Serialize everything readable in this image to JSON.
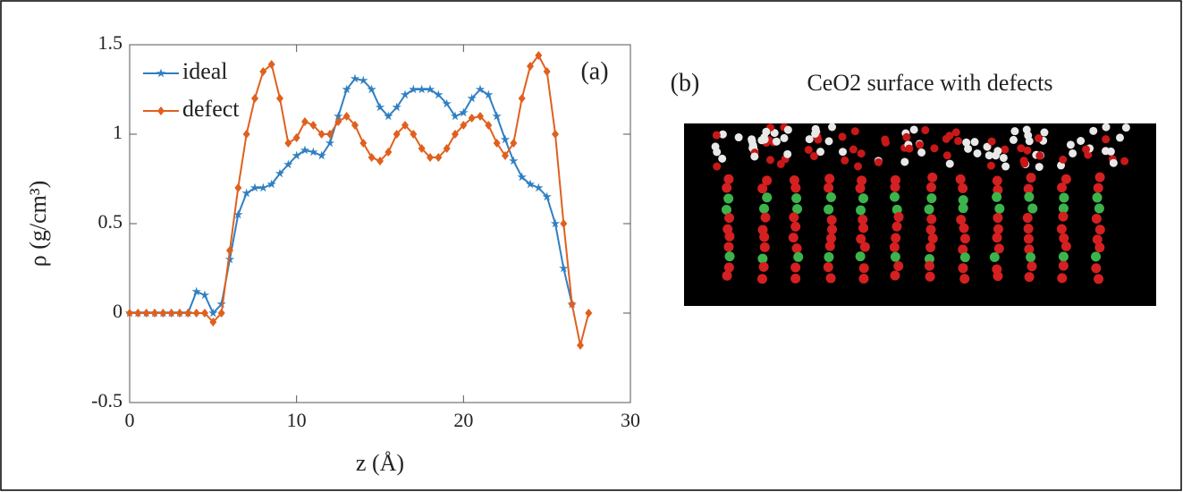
{
  "chart_data": {
    "type": "line",
    "xlabel": "z (Å)",
    "ylabel": "ρ (g/cm³)",
    "xlim": [
      0,
      30
    ],
    "xticks": [
      0,
      10,
      20,
      30
    ],
    "ylim": [
      -0.5,
      1.5
    ],
    "yticks": [
      -0.5,
      0,
      0.5,
      1,
      1.5
    ],
    "legend": "upper left",
    "annotations": [
      "(a)",
      "(b)"
    ],
    "image_title": "CeO2 surface with defects",
    "x": [
      0,
      0.5,
      1,
      1.5,
      2,
      2.5,
      3,
      3.5,
      4,
      4.5,
      5,
      5.5,
      6,
      6.5,
      7,
      7.5,
      8,
      8.5,
      9,
      9.5,
      10,
      10.5,
      11,
      11.5,
      12,
      12.5,
      13,
      13.5,
      14,
      14.5,
      15,
      15.5,
      16,
      16.5,
      17,
      17.5,
      18,
      18.5,
      19,
      19.5,
      20,
      20.5,
      21,
      21.5,
      22,
      22.5,
      23,
      23.5,
      24,
      24.5,
      25,
      25.5,
      26,
      26.5,
      27,
      27.5
    ],
    "series": [
      {
        "name": "ideal",
        "color": "#2f7fc1",
        "marker": "star",
        "values": [
          0,
          0,
          0,
          0,
          0,
          0,
          0,
          0,
          0.12,
          0.1,
          0.0,
          0.05,
          0.3,
          0.55,
          0.67,
          0.7,
          0.7,
          0.72,
          0.78,
          0.83,
          0.88,
          0.91,
          0.9,
          0.88,
          0.95,
          1.1,
          1.25,
          1.31,
          1.3,
          1.25,
          1.15,
          1.1,
          1.15,
          1.22,
          1.25,
          1.25,
          1.25,
          1.22,
          1.17,
          1.1,
          1.12,
          1.2,
          1.25,
          1.22,
          1.1,
          0.97,
          0.85,
          0.76,
          0.72,
          0.7,
          0.65,
          0.5,
          0.25,
          0.05,
          null,
          null
        ]
      },
      {
        "name": "defect",
        "color": "#e0601e",
        "marker": "diamond",
        "values": [
          0,
          0,
          0,
          0,
          0,
          0,
          0,
          0,
          0,
          0.0,
          -0.05,
          0.0,
          0.35,
          0.7,
          1.0,
          1.2,
          1.35,
          1.39,
          1.2,
          0.95,
          0.98,
          1.07,
          1.05,
          1.0,
          1.0,
          1.07,
          1.1,
          1.05,
          0.95,
          0.87,
          0.85,
          0.9,
          1.0,
          1.05,
          1.0,
          0.92,
          0.87,
          0.87,
          0.92,
          1.0,
          1.05,
          1.09,
          1.1,
          1.05,
          0.95,
          0.88,
          0.95,
          1.2,
          1.38,
          1.44,
          1.35,
          1.0,
          0.5,
          0.05,
          -0.18,
          0.0
        ]
      }
    ]
  }
}
